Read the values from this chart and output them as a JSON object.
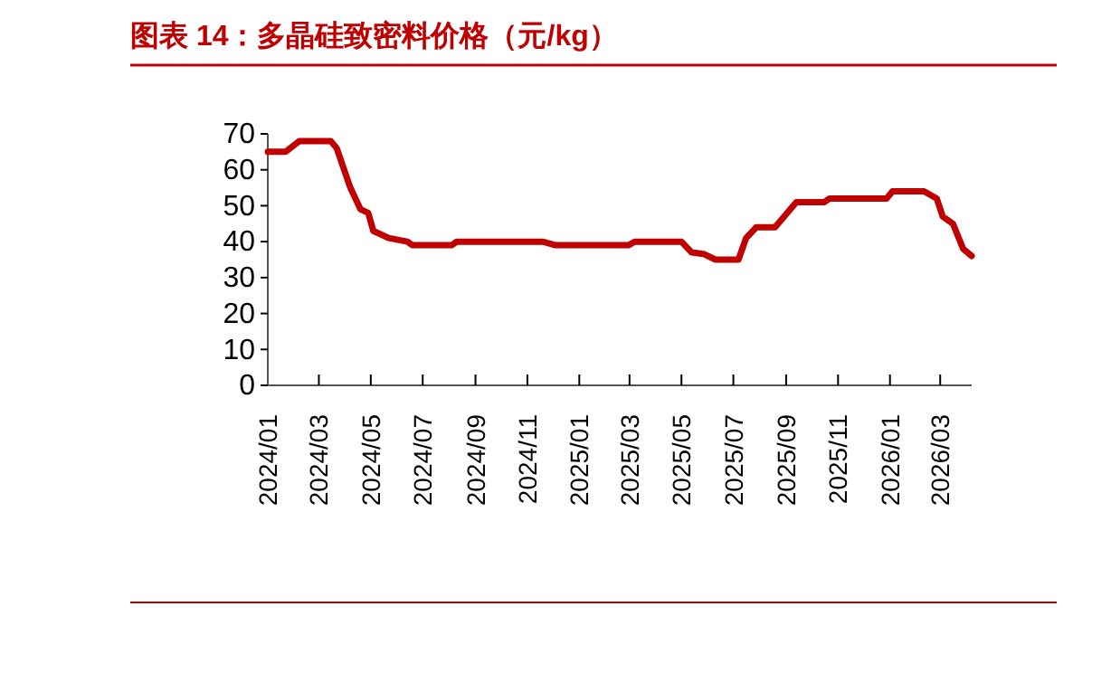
{
  "chart_data": {
    "type": "line",
    "title": "图表 14：多晶硅致密料价格（元/kg）",
    "x": [
      "2024-01-01",
      "2024-01-22",
      "2024-02-07",
      "2024-03-15",
      "2024-03-22",
      "2024-04-07",
      "2024-04-19",
      "2024-04-28",
      "2024-05-04",
      "2024-05-22",
      "2024-06-13",
      "2024-06-19",
      "2024-08-04",
      "2024-08-10",
      "2024-11-19",
      "2024-12-04",
      "2025-02-28",
      "2025-03-07",
      "2025-05-01",
      "2025-05-13",
      "2025-05-28",
      "2025-06-10",
      "2025-07-07",
      "2025-07-16",
      "2025-07-28",
      "2025-08-19",
      "2025-09-13",
      "2025-10-16",
      "2025-10-22",
      "2025-12-28",
      "2026-01-04",
      "2026-02-10",
      "2026-02-25",
      "2026-03-04",
      "2026-03-16",
      "2026-03-28",
      "2026-04-07"
    ],
    "series": [
      {
        "color": "#c00000",
        "values": [
          65,
          65,
          68,
          68,
          66,
          55,
          49,
          48,
          43,
          41,
          40,
          39,
          39,
          40,
          40,
          39,
          39,
          40,
          40,
          37,
          36.5,
          35,
          35,
          41,
          44,
          44,
          51,
          51,
          52,
          52,
          54,
          54,
          52,
          47,
          45,
          38,
          36
        ]
      }
    ],
    "xlim": [
      "2024-01-01",
      "2026-04-07"
    ],
    "xticks": [
      {
        "value": "2024-01",
        "label": "2024/01"
      },
      {
        "value": "2024-03",
        "label": "2024/03"
      },
      {
        "value": "2024-05",
        "label": "2024/05"
      },
      {
        "value": "2024-07",
        "label": "2024/07"
      },
      {
        "value": "2024-09",
        "label": "2024/09"
      },
      {
        "value": "2024-11",
        "label": "2024/11"
      },
      {
        "value": "2025-01",
        "label": "2025/01"
      },
      {
        "value": "2025-03",
        "label": "2025/03"
      },
      {
        "value": "2025-05",
        "label": "2025/05"
      },
      {
        "value": "2025-07",
        "label": "2025/07"
      },
      {
        "value": "2025-09",
        "label": "2025/09"
      },
      {
        "value": "2025-11",
        "label": "2025/11"
      },
      {
        "value": "2026-01",
        "label": "2026/01"
      },
      {
        "value": "2026-03",
        "label": "2026/03"
      }
    ],
    "ylim": [
      0,
      70
    ],
    "yticks": [
      0,
      10,
      20,
      30,
      40,
      50,
      60,
      70
    ],
    "grid": false
  }
}
